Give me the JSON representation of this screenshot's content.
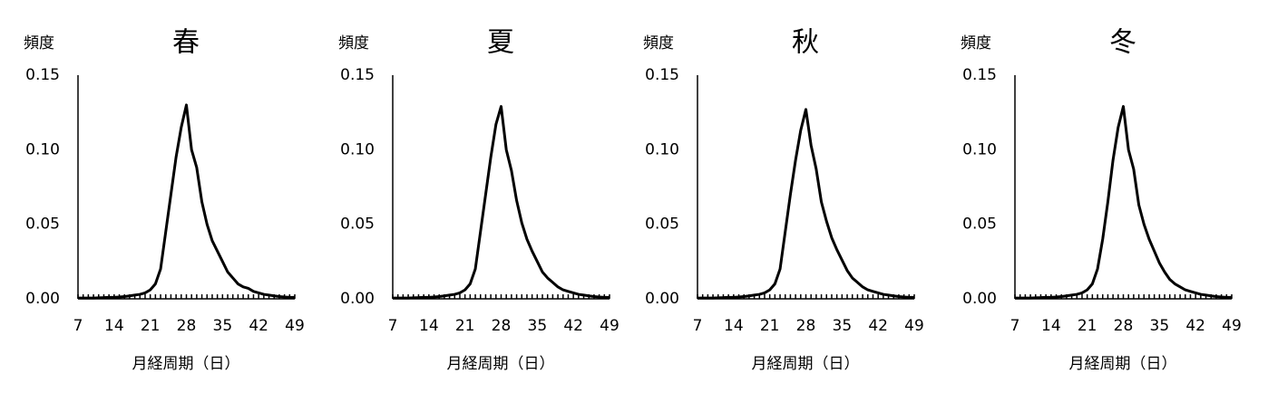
{
  "chart_data": [
    {
      "type": "line",
      "title": "春",
      "y_label": "頻度",
      "x_label": "月経周期（日）",
      "color": "#000000",
      "x": [
        7,
        8,
        9,
        10,
        11,
        12,
        13,
        14,
        15,
        16,
        17,
        18,
        19,
        20,
        21,
        22,
        23,
        24,
        25,
        26,
        27,
        28,
        29,
        30,
        31,
        32,
        33,
        34,
        35,
        36,
        37,
        38,
        39,
        40,
        41,
        42,
        43,
        44,
        45,
        46,
        47,
        48,
        49
      ],
      "values": [
        0.0005,
        0.0005,
        0.0005,
        0.0005,
        0.0007,
        0.0008,
        0.001,
        0.001,
        0.0012,
        0.0015,
        0.002,
        0.0025,
        0.003,
        0.004,
        0.006,
        0.01,
        0.02,
        0.045,
        0.07,
        0.095,
        0.115,
        0.13,
        0.1,
        0.088,
        0.065,
        0.05,
        0.039,
        0.032,
        0.025,
        0.018,
        0.014,
        0.01,
        0.008,
        0.007,
        0.005,
        0.004,
        0.003,
        0.0025,
        0.002,
        0.0015,
        0.0012,
        0.001,
        0.001
      ],
      "xlim": [
        7,
        49
      ],
      "xticks": [
        7,
        14,
        21,
        28,
        35,
        42,
        49
      ],
      "ylim": [
        0,
        0.15
      ],
      "yticks": [
        {
          "value": 0,
          "label": "0.00"
        },
        {
          "value": 0.05,
          "label": "0.05"
        },
        {
          "value": 0.1,
          "label": "0.10"
        },
        {
          "value": 0.15,
          "label": "0.15"
        }
      ]
    },
    {
      "type": "line",
      "title": "夏",
      "y_label": "頻度",
      "x_label": "月経周期（日）",
      "color": "#000000",
      "x": [
        7,
        8,
        9,
        10,
        11,
        12,
        13,
        14,
        15,
        16,
        17,
        18,
        19,
        20,
        21,
        22,
        23,
        24,
        25,
        26,
        27,
        28,
        29,
        30,
        31,
        32,
        33,
        34,
        35,
        36,
        37,
        38,
        39,
        40,
        41,
        42,
        43,
        44,
        45,
        46,
        47,
        48,
        49
      ],
      "values": [
        0.0005,
        0.0005,
        0.0005,
        0.0005,
        0.0007,
        0.0008,
        0.001,
        0.001,
        0.0012,
        0.0015,
        0.002,
        0.0025,
        0.003,
        0.004,
        0.006,
        0.01,
        0.02,
        0.045,
        0.07,
        0.095,
        0.117,
        0.129,
        0.1,
        0.086,
        0.066,
        0.051,
        0.04,
        0.032,
        0.025,
        0.018,
        0.014,
        0.011,
        0.008,
        0.006,
        0.005,
        0.004,
        0.003,
        0.0025,
        0.002,
        0.0015,
        0.0012,
        0.001,
        0.001
      ],
      "xlim": [
        7,
        49
      ],
      "xticks": [
        7,
        14,
        21,
        28,
        35,
        42,
        49
      ],
      "ylim": [
        0,
        0.15
      ],
      "yticks": [
        {
          "value": 0,
          "label": "0.00"
        },
        {
          "value": 0.05,
          "label": "0.05"
        },
        {
          "value": 0.1,
          "label": "0.10"
        },
        {
          "value": 0.15,
          "label": "0.15"
        }
      ]
    },
    {
      "type": "line",
      "title": "秋",
      "y_label": "頻度",
      "x_label": "月経周期（日）",
      "color": "#000000",
      "x": [
        7,
        8,
        9,
        10,
        11,
        12,
        13,
        14,
        15,
        16,
        17,
        18,
        19,
        20,
        21,
        22,
        23,
        24,
        25,
        26,
        27,
        28,
        29,
        30,
        31,
        32,
        33,
        34,
        35,
        36,
        37,
        38,
        39,
        40,
        41,
        42,
        43,
        44,
        45,
        46,
        47,
        48,
        49
      ],
      "values": [
        0.0005,
        0.0005,
        0.0005,
        0.0005,
        0.0007,
        0.0008,
        0.001,
        0.001,
        0.0012,
        0.0015,
        0.002,
        0.0025,
        0.003,
        0.004,
        0.006,
        0.01,
        0.02,
        0.045,
        0.07,
        0.093,
        0.113,
        0.127,
        0.103,
        0.087,
        0.065,
        0.052,
        0.041,
        0.033,
        0.026,
        0.019,
        0.014,
        0.011,
        0.008,
        0.006,
        0.005,
        0.004,
        0.003,
        0.0025,
        0.002,
        0.0015,
        0.0012,
        0.001,
        0.001
      ],
      "xlim": [
        7,
        49
      ],
      "xticks": [
        7,
        14,
        21,
        28,
        35,
        42,
        49
      ],
      "ylim": [
        0,
        0.15
      ],
      "yticks": [
        {
          "value": 0,
          "label": "0.00"
        },
        {
          "value": 0.05,
          "label": "0.05"
        },
        {
          "value": 0.1,
          "label": "0.10"
        },
        {
          "value": 0.15,
          "label": "0.15"
        }
      ]
    },
    {
      "type": "line",
      "title": "冬",
      "y_label": "頻度",
      "x_label": "月経周期（日）",
      "color": "#000000",
      "x": [
        7,
        8,
        9,
        10,
        11,
        12,
        13,
        14,
        15,
        16,
        17,
        18,
        19,
        20,
        21,
        22,
        23,
        24,
        25,
        26,
        27,
        28,
        29,
        30,
        31,
        32,
        33,
        34,
        35,
        36,
        37,
        38,
        39,
        40,
        41,
        42,
        43,
        44,
        45,
        46,
        47,
        48,
        49
      ],
      "values": [
        0.0005,
        0.0005,
        0.0005,
        0.0005,
        0.0007,
        0.0008,
        0.001,
        0.001,
        0.0012,
        0.0015,
        0.002,
        0.0025,
        0.003,
        0.004,
        0.006,
        0.01,
        0.02,
        0.04,
        0.065,
        0.093,
        0.115,
        0.129,
        0.1,
        0.087,
        0.063,
        0.05,
        0.04,
        0.032,
        0.024,
        0.018,
        0.013,
        0.01,
        0.008,
        0.006,
        0.005,
        0.004,
        0.003,
        0.0025,
        0.002,
        0.0015,
        0.0012,
        0.001,
        0.001
      ],
      "xlim": [
        7,
        49
      ],
      "xticks": [
        7,
        14,
        21,
        28,
        35,
        42,
        49
      ],
      "ylim": [
        0,
        0.15
      ],
      "yticks": [
        {
          "value": 0,
          "label": "0.00"
        },
        {
          "value": 0.05,
          "label": "0.05"
        },
        {
          "value": 0.1,
          "label": "0.10"
        },
        {
          "value": 0.15,
          "label": "0.15"
        }
      ]
    }
  ]
}
